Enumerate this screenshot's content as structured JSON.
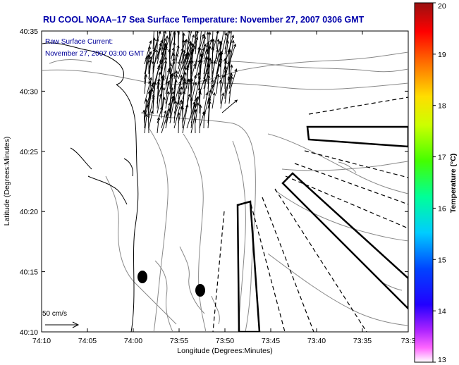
{
  "title": "RU COOL  NOAA–17  Sea Surface Temperature:  November 27, 2007 0306 GMT",
  "annotation": {
    "line1": "Raw Surface Current:",
    "line2": "November 27, 2007 03:00 GMT"
  },
  "scale_label": "50 cm/s",
  "colorbar": {
    "label": "Temperature (°C)",
    "min": 13,
    "max": 20,
    "ticks": [
      "20",
      "19",
      "18",
      "17",
      "16",
      "15",
      "14",
      "13"
    ]
  },
  "axes": {
    "xlabel": "Longitude (Degrees:Minutes)",
    "ylabel": "Latitude (Degrees:Minutes)",
    "xticks": [
      "74:10",
      "74:05",
      "74:00",
      "73:55",
      "73:50",
      "73:45",
      "73:40",
      "73:35",
      "73:3"
    ],
    "yticks": [
      "40:35",
      "40:30",
      "40:25",
      "40:20",
      "40:15",
      "40:10"
    ]
  },
  "colors": {
    "title": "#0000aa",
    "annotation": "#000099",
    "contour": "#888888",
    "coast": "#000000"
  }
}
